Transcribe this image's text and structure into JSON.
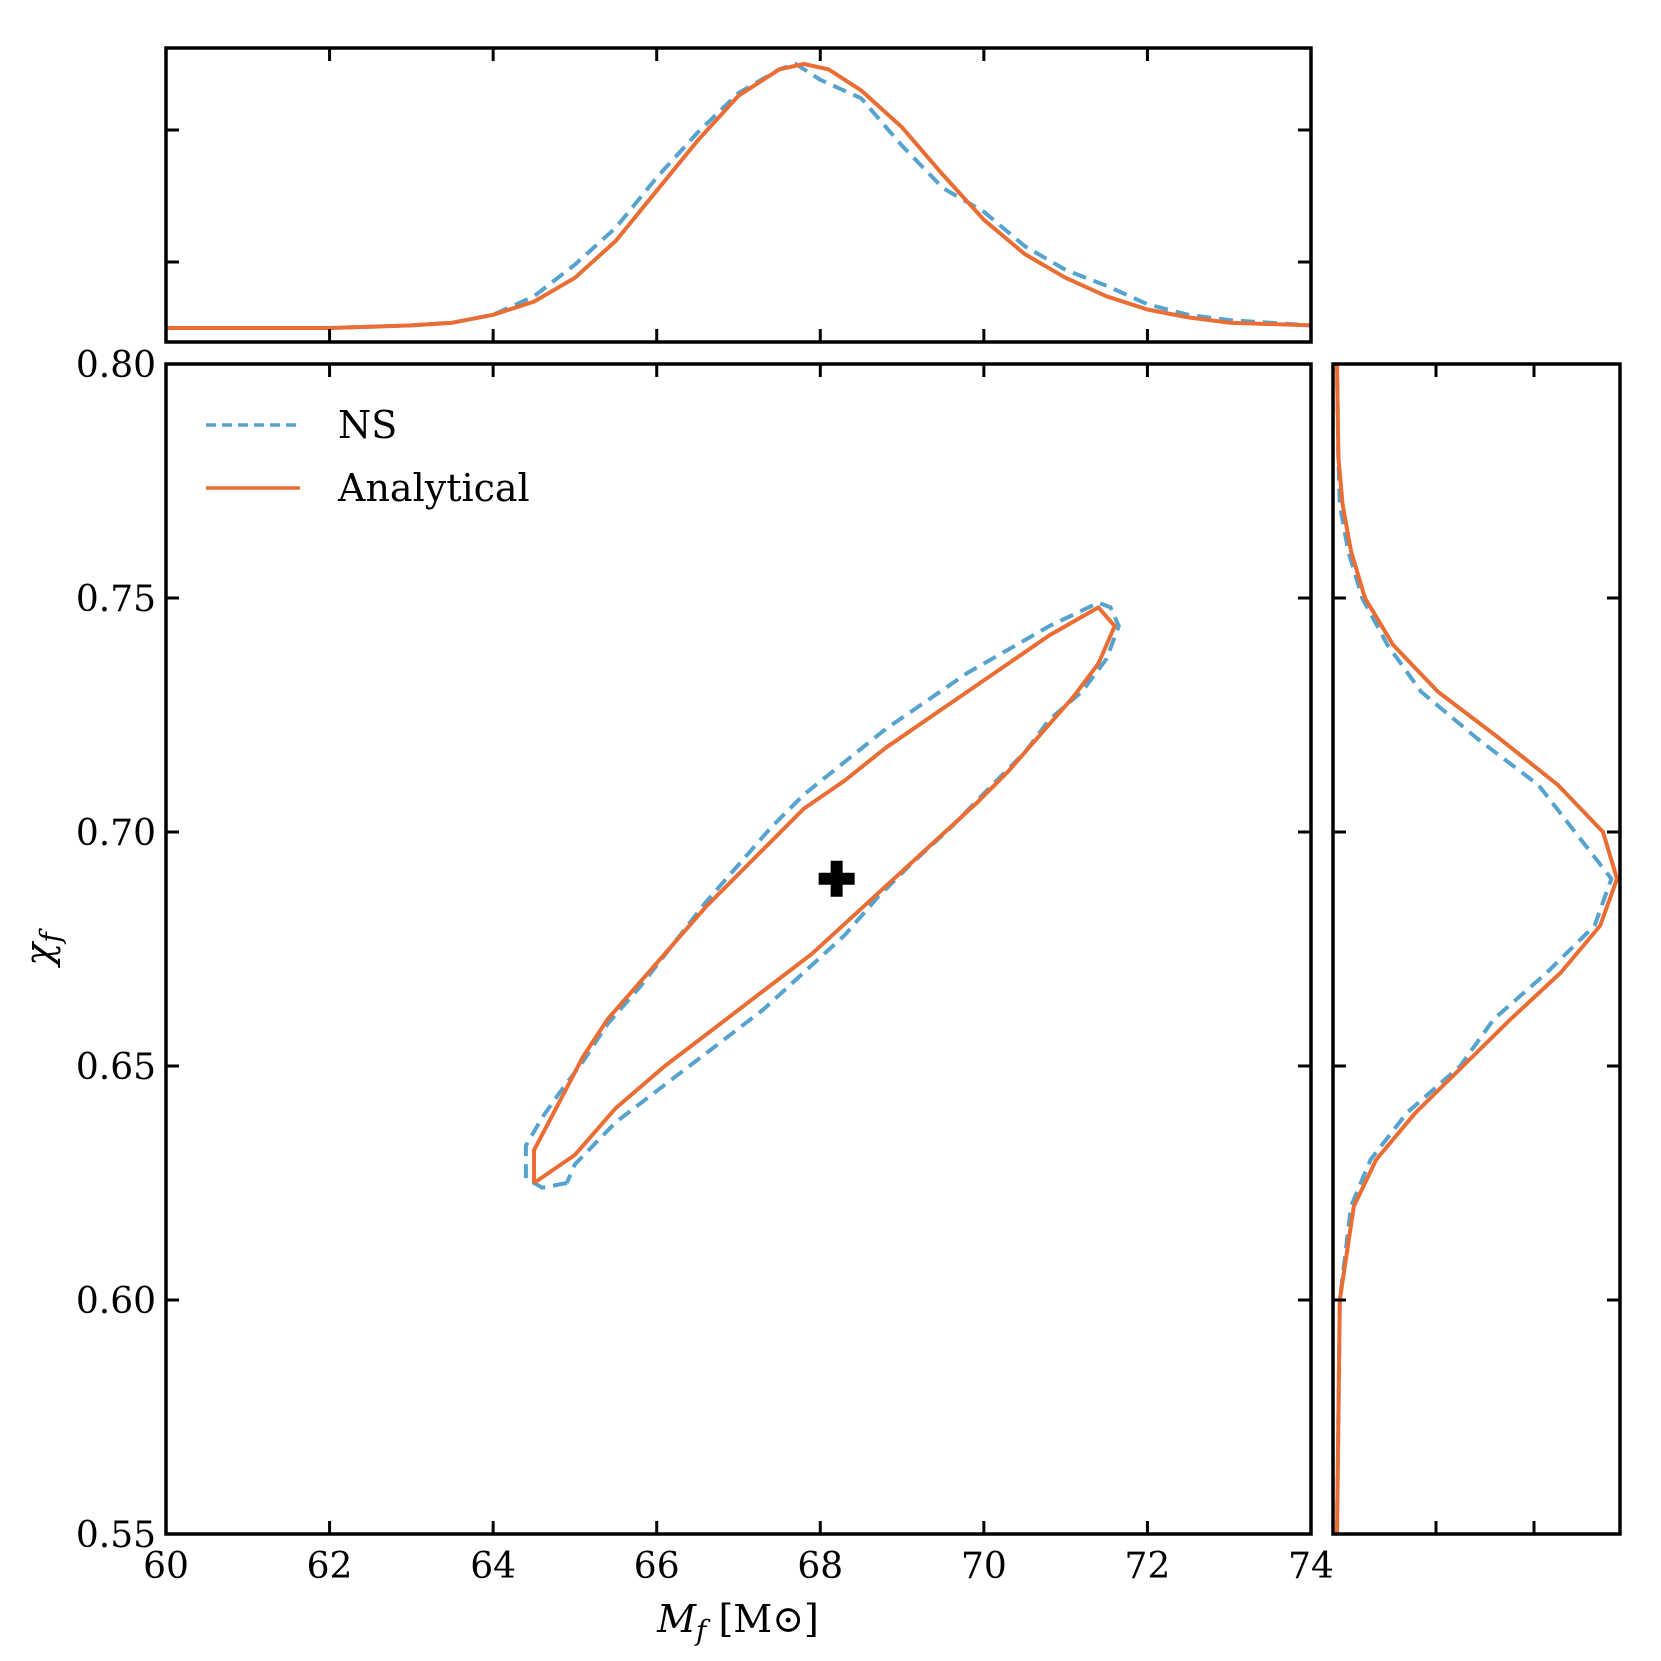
{
  "chart_data": {
    "type": "corner-contour",
    "xlabel": "Mf [M⊙]",
    "xlabel_main": "M",
    "xlabel_sub": "f",
    "xlabel_unit": "[M⊙]",
    "ylabel": "χf",
    "ylabel_main": "χ",
    "ylabel_sub": "f",
    "xlim": [
      60,
      74
    ],
    "ylim": [
      0.55,
      0.8
    ],
    "x_ticks": [
      60,
      62,
      64,
      66,
      68,
      70,
      72,
      74
    ],
    "x_tick_labels": [
      "60",
      "62",
      "64",
      "66",
      "68",
      "70",
      "72",
      "74"
    ],
    "y_ticks": [
      0.55,
      0.6,
      0.65,
      0.7,
      0.75,
      0.8
    ],
    "y_tick_labels": [
      "0.55",
      "0.60",
      "0.65",
      "0.70",
      "0.75",
      "0.80"
    ],
    "legend": {
      "position": "top-left",
      "entries": [
        {
          "label": "NS",
          "color": "#56a3d0",
          "style": "dashed"
        },
        {
          "label": "Analytical",
          "color": "#ea6d34",
          "style": "solid"
        }
      ]
    },
    "marker": {
      "symbol": "plus",
      "x": 68.2,
      "y": 0.69,
      "color": "#000000"
    },
    "series": [
      {
        "name": "NS",
        "color": "#56a3d0",
        "style": "dashed",
        "contour": [
          [
            64.9,
            0.625
          ],
          [
            64.6,
            0.624
          ],
          [
            64.4,
            0.626
          ],
          [
            64.4,
            0.633
          ],
          [
            64.6,
            0.639
          ],
          [
            64.8,
            0.644
          ],
          [
            65.1,
            0.651
          ],
          [
            65.4,
            0.659
          ],
          [
            65.8,
            0.667
          ],
          [
            66.2,
            0.676
          ],
          [
            66.6,
            0.685
          ],
          [
            67.0,
            0.693
          ],
          [
            67.4,
            0.701
          ],
          [
            67.8,
            0.708
          ],
          [
            68.3,
            0.715
          ],
          [
            68.8,
            0.722
          ],
          [
            69.3,
            0.728
          ],
          [
            69.8,
            0.734
          ],
          [
            70.3,
            0.739
          ],
          [
            70.8,
            0.744
          ],
          [
            71.4,
            0.749
          ],
          [
            71.55,
            0.748
          ],
          [
            71.65,
            0.744
          ],
          [
            71.5,
            0.737
          ],
          [
            71.2,
            0.73
          ],
          [
            70.8,
            0.724
          ],
          [
            70.5,
            0.717
          ],
          [
            70.1,
            0.71
          ],
          [
            69.6,
            0.701
          ],
          [
            69.1,
            0.693
          ],
          [
            68.7,
            0.686
          ],
          [
            68.3,
            0.678
          ],
          [
            67.8,
            0.67
          ],
          [
            67.3,
            0.662
          ],
          [
            66.7,
            0.654
          ],
          [
            66.1,
            0.646
          ],
          [
            65.5,
            0.638
          ],
          [
            65.0,
            0.629
          ],
          [
            64.9,
            0.625
          ]
        ],
        "mf_marginal": {
          "x": [
            60,
            62,
            63,
            63.5,
            64,
            64.5,
            65,
            65.5,
            66,
            66.5,
            67,
            67.5,
            67.7,
            68,
            68.5,
            69,
            69.5,
            70,
            70.5,
            71,
            71.5,
            72,
            72.5,
            73,
            74
          ],
          "density": [
            0,
            0,
            0.01,
            0.02,
            0.05,
            0.12,
            0.24,
            0.38,
            0.57,
            0.74,
            0.89,
            0.98,
            1.0,
            0.94,
            0.87,
            0.69,
            0.53,
            0.44,
            0.31,
            0.22,
            0.16,
            0.09,
            0.05,
            0.03,
            0.01
          ]
        },
        "chi_marginal": {
          "y": [
            0.55,
            0.6,
            0.62,
            0.63,
            0.64,
            0.65,
            0.66,
            0.67,
            0.68,
            0.69,
            0.7,
            0.71,
            0.72,
            0.73,
            0.74,
            0.75,
            0.76,
            0.77,
            0.78,
            0.8
          ],
          "density": [
            0,
            0.01,
            0.05,
            0.12,
            0.25,
            0.44,
            0.56,
            0.75,
            0.92,
            0.98,
            0.85,
            0.72,
            0.5,
            0.3,
            0.18,
            0.09,
            0.04,
            0.01,
            0.005,
            0
          ]
        }
      },
      {
        "name": "Analytical",
        "color": "#ea6d34",
        "style": "solid",
        "contour": [
          [
            64.5,
            0.625
          ],
          [
            64.5,
            0.632
          ],
          [
            64.8,
            0.642
          ],
          [
            65.1,
            0.652
          ],
          [
            65.4,
            0.66
          ],
          [
            65.8,
            0.668
          ],
          [
            66.2,
            0.676
          ],
          [
            66.6,
            0.684
          ],
          [
            67.0,
            0.691
          ],
          [
            67.4,
            0.698
          ],
          [
            67.8,
            0.705
          ],
          [
            68.3,
            0.711
          ],
          [
            68.8,
            0.718
          ],
          [
            69.3,
            0.724
          ],
          [
            69.8,
            0.73
          ],
          [
            70.3,
            0.736
          ],
          [
            70.8,
            0.742
          ],
          [
            71.4,
            0.748
          ],
          [
            71.6,
            0.744
          ],
          [
            71.4,
            0.736
          ],
          [
            71.1,
            0.729
          ],
          [
            70.7,
            0.721
          ],
          [
            70.3,
            0.713
          ],
          [
            69.9,
            0.706
          ],
          [
            69.4,
            0.698
          ],
          [
            68.9,
            0.69
          ],
          [
            68.4,
            0.682
          ],
          [
            67.9,
            0.674
          ],
          [
            67.3,
            0.666
          ],
          [
            66.7,
            0.658
          ],
          [
            66.1,
            0.65
          ],
          [
            65.5,
            0.641
          ],
          [
            65.0,
            0.631
          ],
          [
            64.5,
            0.625
          ]
        ],
        "mf_marginal": {
          "x": [
            60,
            62,
            63,
            63.5,
            64,
            64.5,
            65,
            65.5,
            66,
            66.5,
            67,
            67.5,
            67.8,
            68.1,
            68.5,
            69,
            69.5,
            70,
            70.5,
            71,
            71.5,
            72,
            72.5,
            73,
            74
          ],
          "density": [
            0,
            0,
            0.01,
            0.02,
            0.05,
            0.1,
            0.19,
            0.33,
            0.52,
            0.71,
            0.88,
            0.98,
            1.0,
            0.98,
            0.9,
            0.76,
            0.58,
            0.41,
            0.28,
            0.19,
            0.12,
            0.07,
            0.04,
            0.02,
            0.01
          ]
        },
        "chi_marginal": {
          "y": [
            0.55,
            0.6,
            0.62,
            0.63,
            0.64,
            0.65,
            0.66,
            0.67,
            0.68,
            0.69,
            0.7,
            0.71,
            0.72,
            0.73,
            0.74,
            0.75,
            0.76,
            0.77,
            0.78,
            0.8
          ],
          "density": [
            0,
            0.01,
            0.06,
            0.14,
            0.28,
            0.45,
            0.62,
            0.8,
            0.94,
            1.0,
            0.95,
            0.79,
            0.58,
            0.36,
            0.2,
            0.1,
            0.05,
            0.02,
            0.005,
            0
          ]
        }
      }
    ]
  }
}
